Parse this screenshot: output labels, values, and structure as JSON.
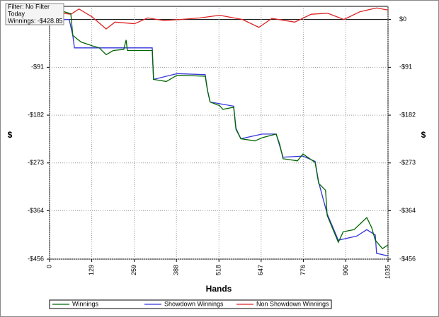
{
  "chart_data": {
    "type": "line",
    "info": [
      "Filter: No Filter",
      "Today",
      "Winnings: -$428.85"
    ],
    "x_label": "Hands",
    "y_label": "$",
    "xlim": [
      0,
      1035
    ],
    "xticks": [
      0,
      129,
      259,
      388,
      518,
      647,
      776,
      906,
      1035
    ],
    "ylim": [
      -456,
      25
    ],
    "yticks": [
      {
        "value": 0,
        "label": "$0"
      },
      {
        "value": -91,
        "label": "-$91"
      },
      {
        "value": -182,
        "label": "-$182"
      },
      {
        "value": -273,
        "label": "-$273"
      },
      {
        "value": -364,
        "label": "-$364"
      },
      {
        "value": -456,
        "label": "-$456"
      }
    ],
    "grid": true,
    "series": [
      {
        "name": "Winnings",
        "color": "#006400",
        "x": [
          0,
          32,
          65,
          71,
          82,
          97,
          130,
          152,
          173,
          195,
          227,
          234,
          238,
          314,
          318,
          357,
          390,
          476,
          483,
          491,
          520,
          530,
          563,
          570,
          585,
          628,
          650,
          693,
          704,
          714,
          758,
          775,
          812,
          823,
          844,
          849,
          883,
          898,
          931,
          970,
          985,
          996,
          1018,
          1035
        ],
        "values": [
          13,
          17,
          11,
          -30,
          -36,
          -43,
          -50,
          -54,
          -67,
          -59,
          -57,
          -39,
          -59,
          -59,
          -114,
          -118,
          -106,
          -108,
          -135,
          -157,
          -164,
          -171,
          -167,
          -209,
          -227,
          -231,
          -225,
          -218,
          -238,
          -265,
          -269,
          -256,
          -272,
          -312,
          -325,
          -373,
          -424,
          -404,
          -400,
          -377,
          -396,
          -420,
          -436,
          -429
        ]
      },
      {
        "name": "Showdown Winnings",
        "color": "#3333dd",
        "x": [
          0,
          60,
          71,
          76,
          314,
          318,
          390,
          476,
          483,
          491,
          563,
          570,
          585,
          650,
          693,
          714,
          775,
          812,
          823,
          849,
          883,
          940,
          970,
          996,
          1000,
          1035
        ],
        "values": [
          0,
          0,
          -30,
          -54,
          -54,
          -114,
          -103,
          -105,
          -135,
          -157,
          -165,
          -207,
          -227,
          -218,
          -218,
          -262,
          -260,
          -270,
          -310,
          -370,
          -420,
          -412,
          -400,
          -410,
          -445,
          -450
        ]
      },
      {
        "name": "Non Showdown Winnings",
        "color": "#dd2222",
        "x": [
          0,
          40,
          65,
          90,
          130,
          173,
          200,
          260,
          300,
          350,
          400,
          460,
          520,
          590,
          640,
          680,
          750,
          800,
          850,
          900,
          950,
          1000,
          1035
        ],
        "values": [
          15,
          12,
          10,
          20,
          5,
          -18,
          -5,
          -8,
          3,
          -2,
          0,
          3,
          8,
          0,
          -15,
          2,
          -5,
          10,
          12,
          0,
          15,
          22,
          18
        ]
      }
    ]
  }
}
